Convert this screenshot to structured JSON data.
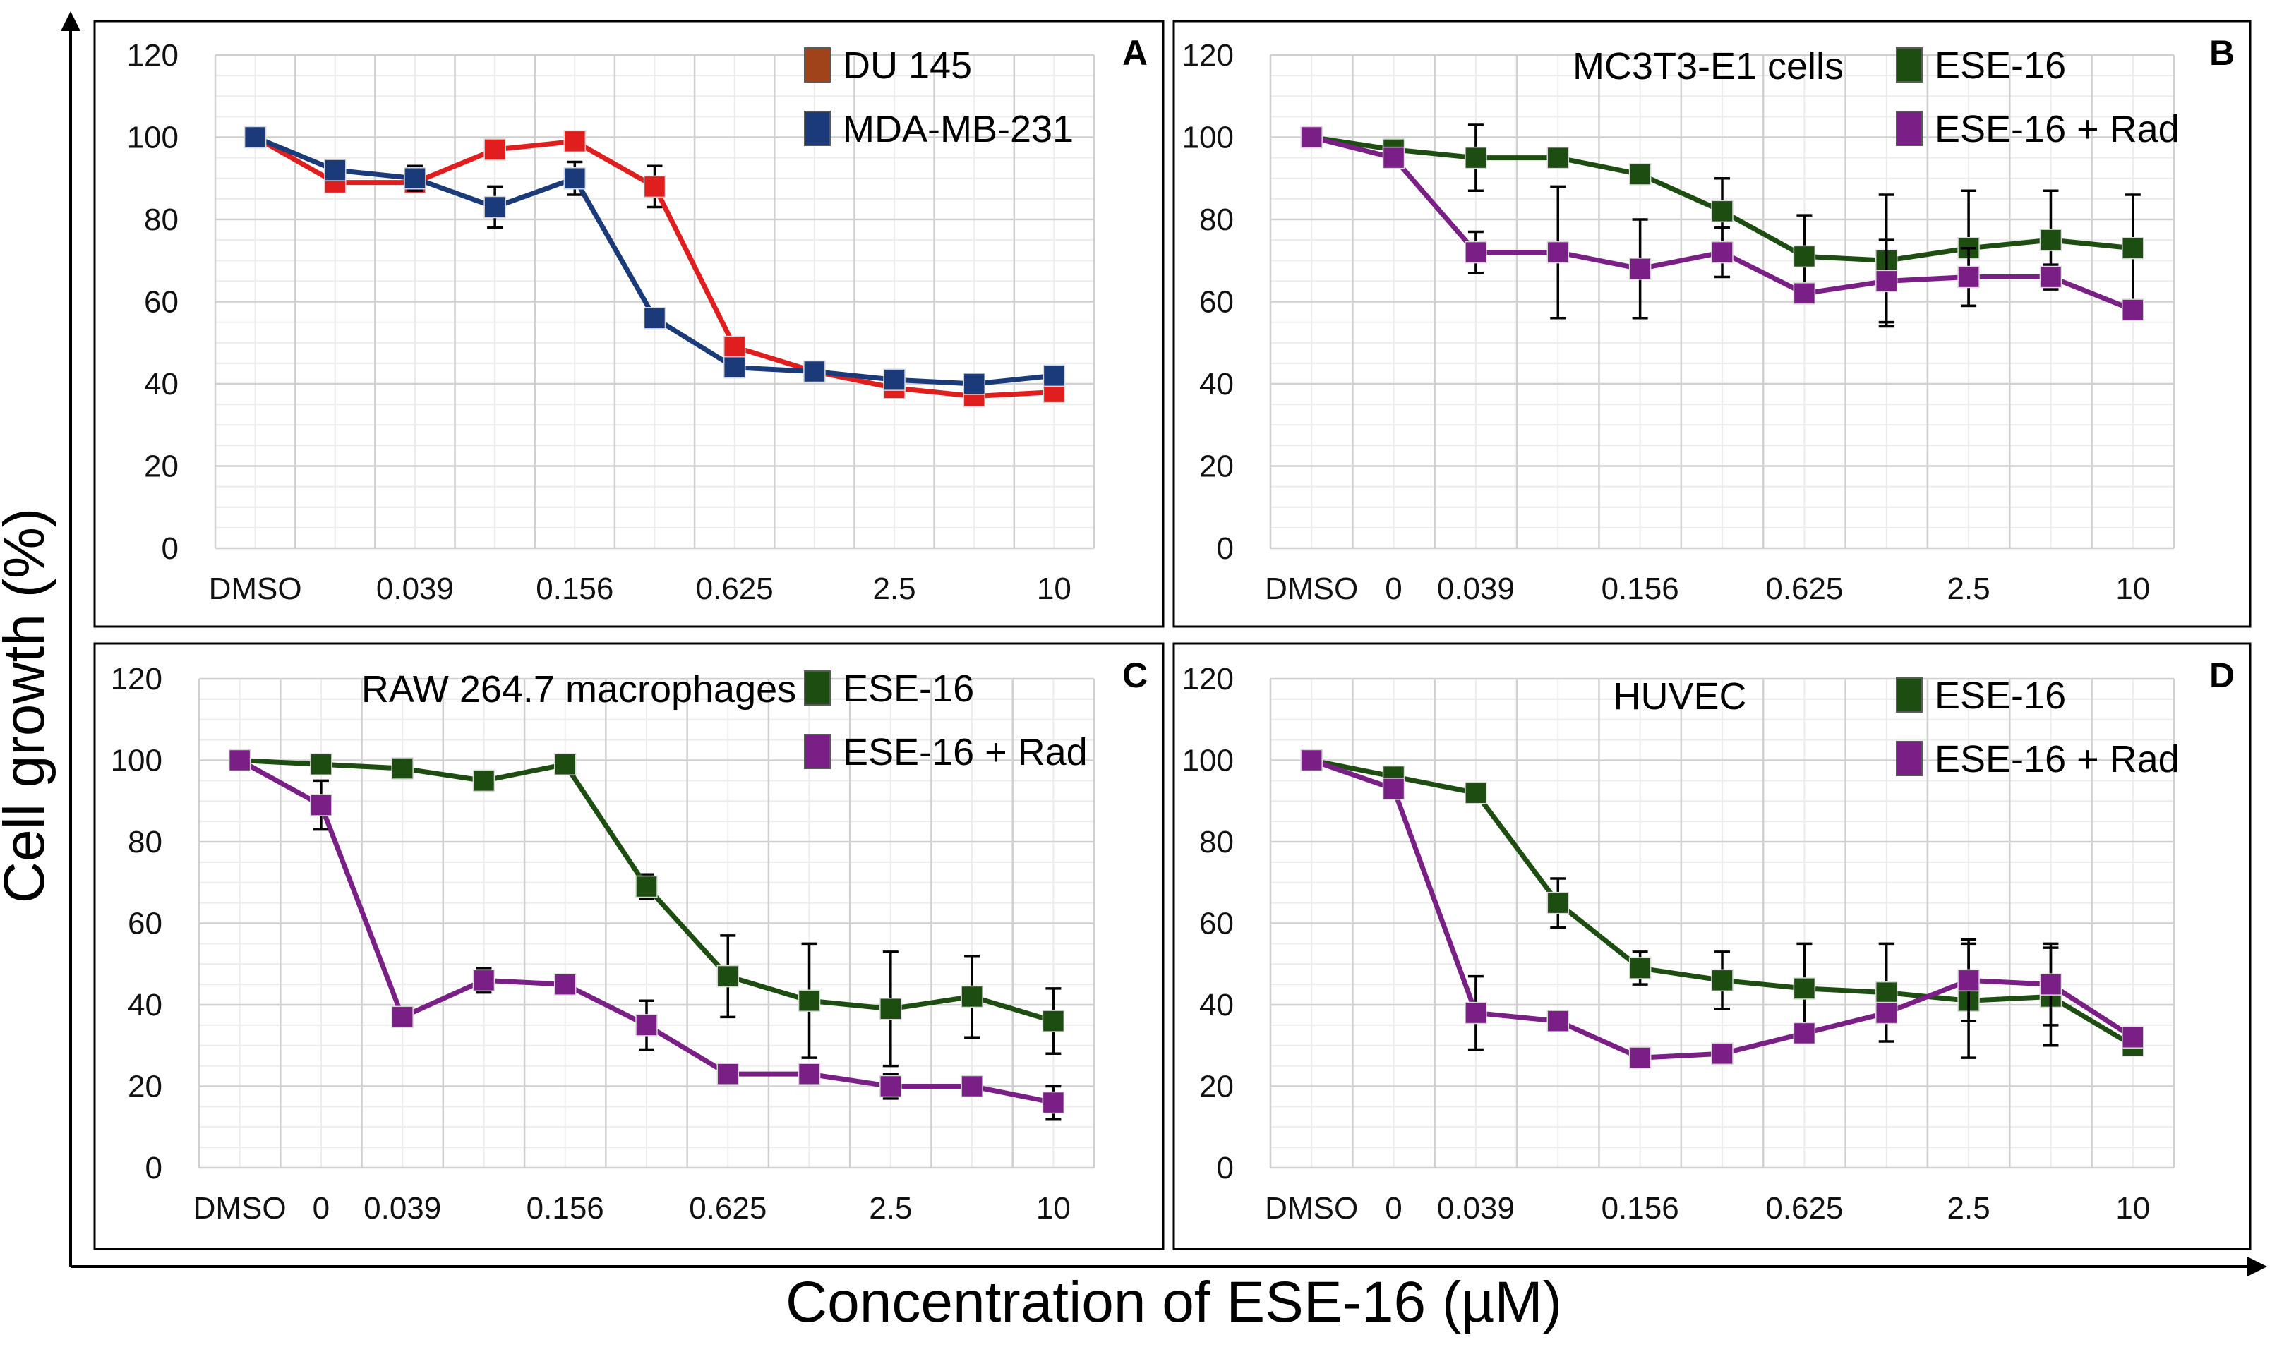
{
  "figure": {
    "y_axis_label": "Cell growth (%)",
    "x_axis_label": "Concentration of ESE-16 (µM)"
  },
  "colors": {
    "du145": "#e01e1e",
    "mda": "#1a3a7a",
    "ese16": "#1e4d12",
    "ese16_rad": "#7a1f86",
    "grid_major": "#d0d0d0",
    "grid_minor": "#ececec",
    "axis_text": "#111111",
    "du145_legend": "#a0421a"
  },
  "chart_data": [
    {
      "panel": "A",
      "type": "line",
      "title": "",
      "categories": [
        "DMSO",
        "",
        "0.039",
        "",
        "0.156",
        "",
        "0.625",
        "",
        "2.5",
        "",
        "10"
      ],
      "x_index": [
        0,
        1,
        2,
        3,
        4,
        5,
        6,
        7,
        8,
        9,
        10
      ],
      "ylim": [
        0,
        120
      ],
      "yticks": [
        "0",
        "20",
        "40",
        "60",
        "80",
        "100",
        "120"
      ],
      "legend_position": "top-right",
      "series": [
        {
          "name": "DU 145",
          "color_key": "du145",
          "legend_color_key": "du145_legend",
          "values": [
            100,
            89,
            89,
            97,
            99,
            88,
            49,
            43,
            39,
            37,
            38
          ],
          "errors": [
            0,
            2,
            2,
            2,
            2,
            5,
            2,
            1,
            1,
            1,
            1
          ]
        },
        {
          "name": "MDA-MB-231",
          "color_key": "mda",
          "legend_color_key": "mda",
          "values": [
            100,
            92,
            90,
            83,
            90,
            56,
            44,
            43,
            41,
            40,
            42
          ],
          "errors": [
            0,
            2,
            3,
            5,
            4,
            2,
            2,
            1,
            1,
            1,
            1
          ]
        }
      ]
    },
    {
      "panel": "B",
      "type": "line",
      "title": "MC3T3-E1 cells",
      "categories": [
        "DMSO",
        "0",
        "0.039",
        "",
        "0.156",
        "",
        "0.625",
        "",
        "2.5",
        "",
        "10"
      ],
      "x_index": [
        0,
        1,
        2,
        3,
        4,
        5,
        6,
        7,
        8,
        9,
        10
      ],
      "ylim": [
        0,
        120
      ],
      "yticks": [
        "0",
        "20",
        "40",
        "60",
        "80",
        "100",
        "120"
      ],
      "legend_position": "top-right",
      "series": [
        {
          "name": "ESE-16",
          "color_key": "ese16",
          "legend_color_key": "ese16",
          "values": [
            100,
            97,
            95,
            95,
            91,
            82,
            71,
            70,
            73,
            75,
            73
          ],
          "errors": [
            0,
            1,
            8,
            1,
            1,
            8,
            10,
            16,
            14,
            12,
            13
          ]
        },
        {
          "name": "ESE-16 + Rad",
          "color_key": "ese16_rad",
          "legend_color_key": "ese16_rad",
          "values": [
            100,
            95,
            72,
            72,
            68,
            72,
            62,
            65,
            66,
            66,
            58
          ],
          "errors": [
            0,
            1,
            5,
            16,
            12,
            6,
            1,
            10,
            7,
            3,
            1
          ]
        }
      ]
    },
    {
      "panel": "C",
      "type": "line",
      "title": "RAW 264.7 macrophages",
      "categories": [
        "DMSO",
        "0",
        "0.039",
        "",
        "0.156",
        "",
        "0.625",
        "",
        "2.5",
        "",
        "10"
      ],
      "x_index": [
        0,
        1,
        2,
        3,
        4,
        5,
        6,
        7,
        8,
        9,
        10
      ],
      "ylim": [
        0,
        120
      ],
      "yticks": [
        "0",
        "20",
        "40",
        "60",
        "80",
        "100",
        "120"
      ],
      "legend_position": "top-right",
      "series": [
        {
          "name": "ESE-16",
          "color_key": "ese16",
          "legend_color_key": "ese16",
          "values": [
            100,
            99,
            98,
            95,
            99,
            69,
            47,
            41,
            39,
            42,
            36
          ],
          "errors": [
            0,
            1,
            1,
            1,
            1,
            3,
            10,
            14,
            14,
            10,
            8
          ]
        },
        {
          "name": "ESE-16 + Rad",
          "color_key": "ese16_rad",
          "legend_color_key": "ese16_rad",
          "values": [
            100,
            89,
            37,
            46,
            45,
            35,
            23,
            23,
            20,
            20,
            16
          ],
          "errors": [
            0,
            6,
            1,
            3,
            1,
            6,
            1,
            1,
            3,
            1,
            4
          ]
        }
      ]
    },
    {
      "panel": "D",
      "type": "line",
      "title": "HUVEC",
      "categories": [
        "DMSO",
        "0",
        "0.039",
        "",
        "0.156",
        "",
        "0.625",
        "",
        "2.5",
        "",
        "10"
      ],
      "x_index": [
        0,
        1,
        2,
        3,
        4,
        5,
        6,
        7,
        8,
        9,
        10
      ],
      "ylim": [
        0,
        120
      ],
      "yticks": [
        "0",
        "20",
        "40",
        "60",
        "80",
        "100",
        "120"
      ],
      "legend_position": "top-right",
      "series": [
        {
          "name": "ESE-16",
          "color_key": "ese16",
          "legend_color_key": "ese16",
          "values": [
            100,
            96,
            92,
            65,
            49,
            46,
            44,
            43,
            41,
            42,
            30
          ],
          "errors": [
            0,
            1,
            1,
            6,
            4,
            7,
            11,
            12,
            14,
            12,
            1
          ]
        },
        {
          "name": "ESE-16 + Rad",
          "color_key": "ese16_rad",
          "legend_color_key": "ese16_rad",
          "values": [
            100,
            93,
            38,
            36,
            27,
            28,
            33,
            38,
            46,
            45,
            32
          ],
          "errors": [
            0,
            1,
            9,
            1,
            1,
            1,
            1,
            1,
            10,
            10,
            1
          ]
        }
      ]
    }
  ]
}
